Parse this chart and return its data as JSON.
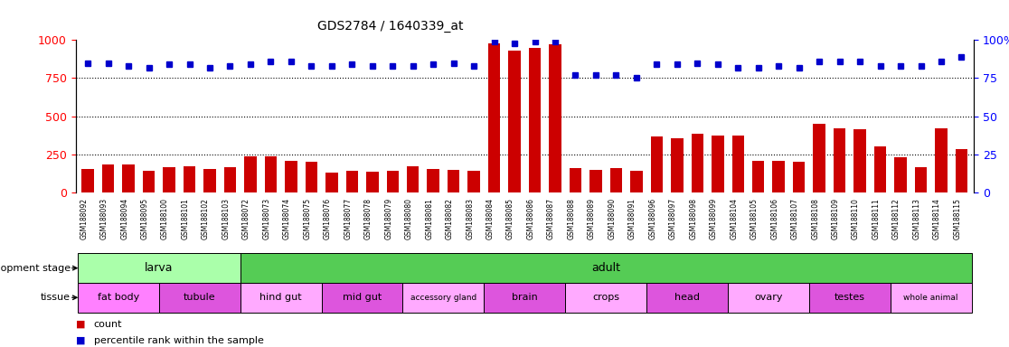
{
  "title": "GDS2784 / 1640339_at",
  "samples": [
    "GSM188092",
    "GSM188093",
    "GSM188094",
    "GSM188095",
    "GSM188100",
    "GSM188101",
    "GSM188102",
    "GSM188103",
    "GSM188072",
    "GSM188073",
    "GSM188074",
    "GSM188075",
    "GSM188076",
    "GSM188077",
    "GSM188078",
    "GSM188079",
    "GSM188080",
    "GSM188081",
    "GSM188082",
    "GSM188083",
    "GSM188084",
    "GSM188085",
    "GSM188086",
    "GSM188087",
    "GSM188088",
    "GSM188089",
    "GSM188090",
    "GSM188091",
    "GSM188096",
    "GSM188097",
    "GSM188098",
    "GSM188099",
    "GSM188104",
    "GSM188105",
    "GSM188106",
    "GSM188107",
    "GSM188108",
    "GSM188109",
    "GSM188110",
    "GSM188111",
    "GSM188112",
    "GSM188113",
    "GSM188114",
    "GSM188115"
  ],
  "counts": [
    155,
    185,
    185,
    145,
    165,
    175,
    155,
    165,
    240,
    235,
    205,
    200,
    130,
    145,
    135,
    145,
    175,
    155,
    150,
    145,
    980,
    930,
    950,
    970,
    160,
    150,
    160,
    140,
    370,
    355,
    385,
    375,
    375,
    205,
    205,
    200,
    450,
    420,
    415,
    300,
    230,
    165,
    420,
    285
  ],
  "percentile": [
    85,
    85,
    83,
    82,
    84,
    84,
    82,
    83,
    84,
    86,
    86,
    83,
    83,
    84,
    83,
    83,
    83,
    84,
    85,
    83,
    99,
    98,
    99,
    99,
    77,
    77,
    77,
    75,
    84,
    84,
    85,
    84,
    82,
    82,
    83,
    82,
    86,
    86,
    86,
    83,
    83,
    83,
    86,
    89
  ],
  "dev_stages": [
    {
      "label": "larva",
      "start": 0,
      "end": 8
    },
    {
      "label": "adult",
      "start": 8,
      "end": 44
    }
  ],
  "tissues": [
    {
      "label": "fat body",
      "start": 0,
      "end": 4,
      "color": "#ff80ff"
    },
    {
      "label": "tubule",
      "start": 4,
      "end": 8,
      "color": "#dd55dd"
    },
    {
      "label": "hind gut",
      "start": 8,
      "end": 12,
      "color": "#ffaaff"
    },
    {
      "label": "mid gut",
      "start": 12,
      "end": 16,
      "color": "#dd55dd"
    },
    {
      "label": "accessory gland",
      "start": 16,
      "end": 20,
      "color": "#ffaaff"
    },
    {
      "label": "brain",
      "start": 20,
      "end": 24,
      "color": "#dd55dd"
    },
    {
      "label": "crops",
      "start": 24,
      "end": 28,
      "color": "#ffaaff"
    },
    {
      "label": "head",
      "start": 28,
      "end": 32,
      "color": "#dd55dd"
    },
    {
      "label": "ovary",
      "start": 32,
      "end": 36,
      "color": "#ffaaff"
    },
    {
      "label": "testes",
      "start": 36,
      "end": 40,
      "color": "#dd55dd"
    },
    {
      "label": "whole animal",
      "start": 40,
      "end": 44,
      "color": "#ffaaff"
    }
  ],
  "larva_color": "#aaffaa",
  "adult_color": "#55cc55",
  "bar_color": "#cc0000",
  "dot_color": "#0000cc",
  "bg_color": "#ffffff",
  "ylim_left": [
    0,
    1000
  ],
  "ylim_right": [
    0,
    100
  ],
  "yticks_left": [
    0,
    250,
    500,
    750,
    1000
  ],
  "yticks_right": [
    0,
    25,
    50,
    75,
    100
  ]
}
